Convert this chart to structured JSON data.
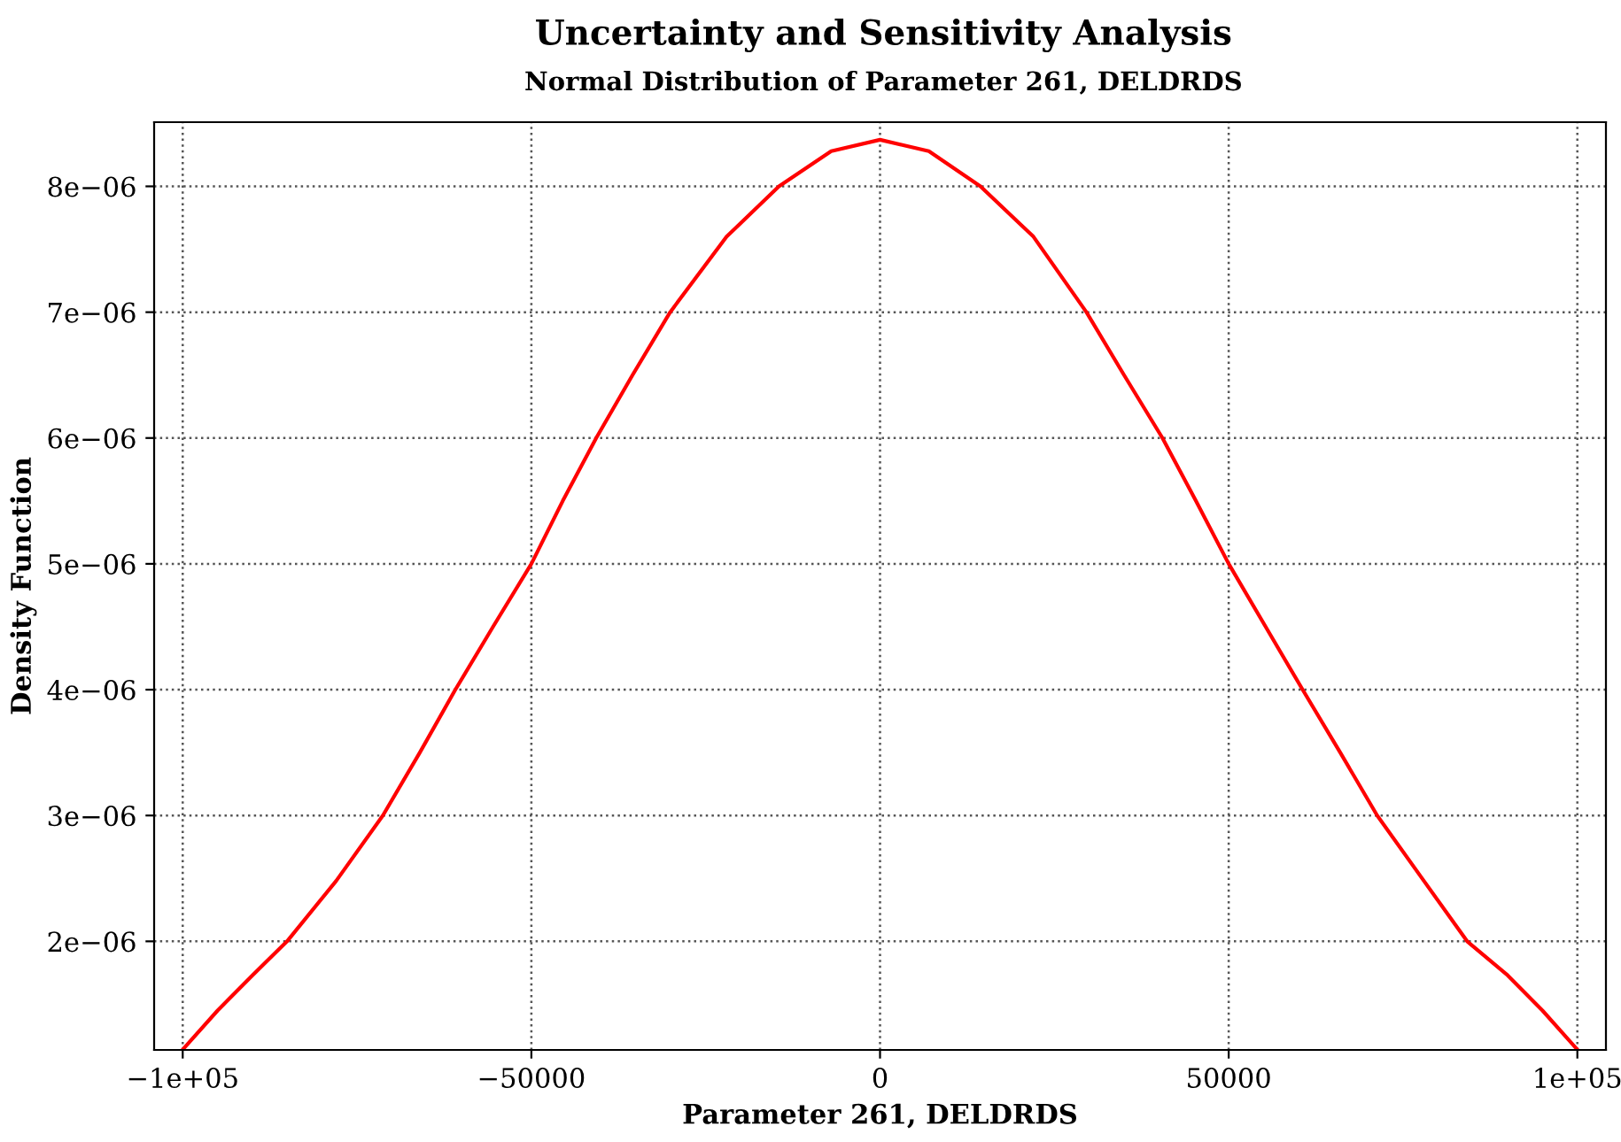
{
  "chart_data": {
    "type": "line",
    "title": "Uncertainty and Sensitivity Analysis",
    "subtitle": "Normal Distribution of Parameter 261, DELDRDS",
    "xlabel": "Parameter 261, DELDRDS",
    "ylabel": "Density Function",
    "series": [
      {
        "color": "#ff0000",
        "x": [
          -100000,
          -95000,
          -90000,
          -85040,
          -78000,
          -71300,
          -66000,
          -60900,
          -55500,
          -50000,
          -45500,
          -40700,
          -35500,
          -30100,
          -22000,
          -14500,
          -7000,
          0,
          7000,
          14400,
          22000,
          29600,
          35000,
          40500,
          45300,
          50000,
          55300,
          60600,
          66000,
          71300,
          78000,
          84200,
          90000,
          95000,
          100000
        ],
        "values": [
          1.14e-06,
          1.45e-06,
          1.73e-06,
          2e-06,
          2.48e-06,
          3e-06,
          3.5e-06,
          4e-06,
          4.5e-06,
          5e-06,
          5.5e-06,
          6e-06,
          6.5e-06,
          7e-06,
          7.6e-06,
          8e-06,
          8.28e-06,
          8.37e-06,
          8.28e-06,
          8e-06,
          7.6e-06,
          7e-06,
          6.5e-06,
          6e-06,
          5.5e-06,
          5e-06,
          4.5e-06,
          4e-06,
          3.5e-06,
          3e-06,
          2.48e-06,
          2e-06,
          1.73e-06,
          1.45e-06,
          1.14e-06
        ]
      }
    ],
    "xlim": [
      -104100,
      104100
    ],
    "ylim": [
      1.137e-06,
      8.51e-06
    ],
    "xticks": [
      {
        "value": -100000,
        "label": "−1e+05"
      },
      {
        "value": -50000,
        "label": "−50000"
      },
      0,
      50000,
      {
        "value": 100000,
        "label": "1e+05"
      }
    ],
    "yticks": [
      {
        "value": 2e-06,
        "label": "2e−06"
      },
      {
        "value": 3e-06,
        "label": "3e−06"
      },
      {
        "value": 4e-06,
        "label": "4e−06"
      },
      {
        "value": 5e-06,
        "label": "5e−06"
      },
      {
        "value": 6e-06,
        "label": "6e−06"
      },
      {
        "value": 7e-06,
        "label": "7e−06"
      },
      {
        "value": 8e-06,
        "label": "8e−06"
      }
    ],
    "grid": true,
    "line_style": "solid"
  }
}
